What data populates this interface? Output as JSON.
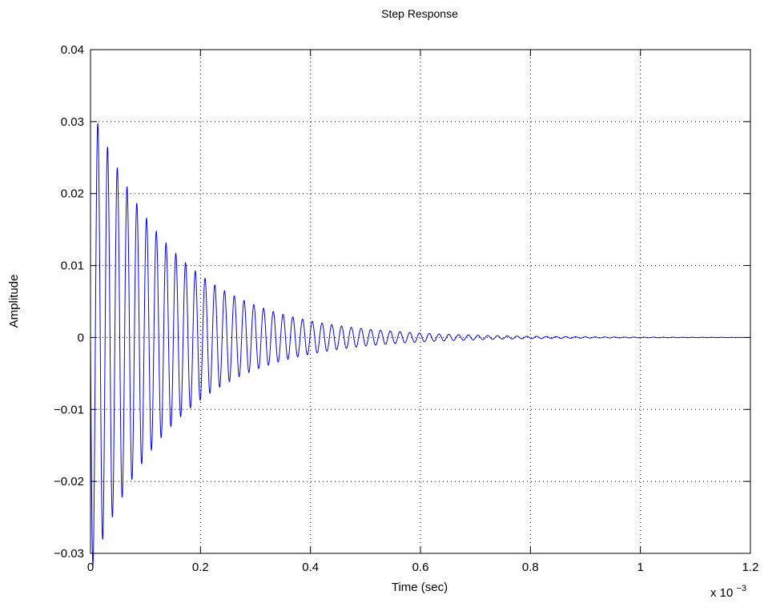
{
  "chart_data": {
    "type": "line",
    "title": "Step Response",
    "xlabel": "Time (sec)",
    "ylabel": "Amplitude",
    "x_exponent_label": "x 10",
    "x_exponent": "−3",
    "xlim": [
      0,
      1.2
    ],
    "ylim": [
      -0.03,
      0.04
    ],
    "x_ticks": [
      0,
      0.2,
      0.4,
      0.6,
      0.8,
      1,
      1.2
    ],
    "x_tick_labels": [
      "0",
      "0.2",
      "0.4",
      "0.6",
      "0.8",
      "1",
      "1.2"
    ],
    "y_ticks": [
      -0.03,
      -0.02,
      -0.01,
      0,
      0.01,
      0.02,
      0.03,
      0.04
    ],
    "y_tick_labels": [
      "−0.03",
      "−0.02",
      "−0.01",
      "0",
      "0.01",
      "0.02",
      "0.03",
      "0.04"
    ],
    "grid": true,
    "grid_style": "dotted",
    "series_color": "#0000ff",
    "series": [
      {
        "model": "damped_sine",
        "amplitude": 0.0325,
        "decay_rate": 6.6,
        "frequency": 56.4,
        "x_end": 1.2
      }
    ]
  }
}
